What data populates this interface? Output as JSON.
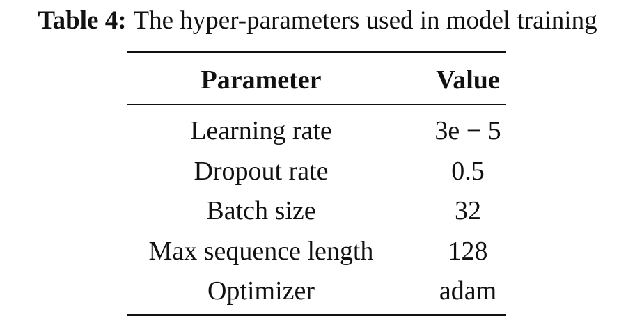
{
  "caption": {
    "label": "Table 4:",
    "text": "The hyper-parameters used in model training"
  },
  "table": {
    "header": [
      "Parameter",
      "Value"
    ],
    "rows": [
      [
        "Learning rate",
        "3e − 5"
      ],
      [
        "Dropout rate",
        "0.5"
      ],
      [
        "Batch size",
        "32"
      ],
      [
        "Max sequence length",
        "128"
      ],
      [
        "Optimizer",
        "adam"
      ]
    ]
  }
}
